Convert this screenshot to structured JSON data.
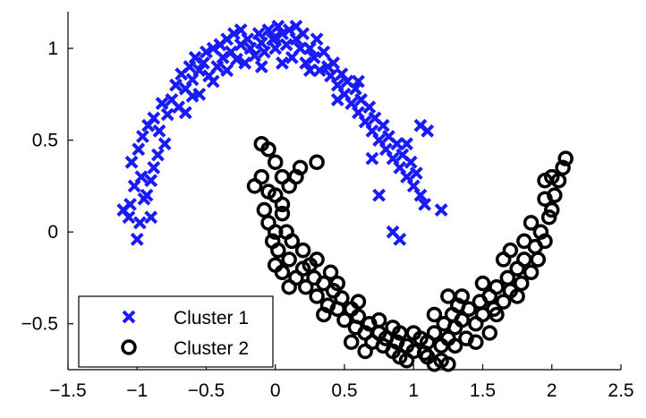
{
  "chart_data": {
    "type": "scatter",
    "title": "",
    "xlabel": "",
    "ylabel": "",
    "xlim": [
      -1.5,
      2.5
    ],
    "ylim": [
      -0.75,
      1.2
    ],
    "xticks": [
      -1.5,
      -1,
      -0.5,
      0,
      0.5,
      1,
      1.5,
      2,
      2.5
    ],
    "xtick_labels": [
      "−1.5",
      "−1",
      "−0.5",
      "0",
      "0.5",
      "1",
      "1.5",
      "2",
      "2.5"
    ],
    "yticks": [
      -0.5,
      0,
      0.5,
      1
    ],
    "ytick_labels": [
      "−0.5",
      "0",
      "0.5",
      "1"
    ],
    "grid": false,
    "legend_position": "bottom-left",
    "series": [
      {
        "name": "Cluster 1",
        "marker": "x",
        "color": "#1a1aff",
        "points": [
          [
            -1.05,
            0.15
          ],
          [
            -1.02,
            0.25
          ],
          [
            -0.98,
            0.05
          ],
          [
            -0.95,
            0.18
          ],
          [
            -1.1,
            0.12
          ],
          [
            -0.9,
            0.08
          ],
          [
            -1.0,
            -0.04
          ],
          [
            -0.97,
            0.3
          ],
          [
            -0.93,
            0.2
          ],
          [
            -1.04,
            0.38
          ],
          [
            -0.99,
            0.45
          ],
          [
            -0.96,
            0.52
          ],
          [
            -0.88,
            0.35
          ],
          [
            -0.85,
            0.42
          ],
          [
            -0.92,
            0.58
          ],
          [
            -0.88,
            0.62
          ],
          [
            -0.84,
            0.55
          ],
          [
            -0.8,
            0.48
          ],
          [
            -0.82,
            0.7
          ],
          [
            -0.78,
            0.64
          ],
          [
            -0.75,
            0.72
          ],
          [
            -0.72,
            0.8
          ],
          [
            -0.7,
            0.68
          ],
          [
            -0.68,
            0.86
          ],
          [
            -0.65,
            0.78
          ],
          [
            -0.62,
            0.9
          ],
          [
            -0.6,
            0.83
          ],
          [
            -0.58,
            0.95
          ],
          [
            -0.55,
            0.88
          ],
          [
            -0.52,
            0.92
          ],
          [
            -0.5,
            0.98
          ],
          [
            -0.48,
            0.85
          ],
          [
            -0.45,
            1.0
          ],
          [
            -0.42,
            0.9
          ],
          [
            -0.4,
            1.02
          ],
          [
            -0.38,
            0.95
          ],
          [
            -0.35,
            1.05
          ],
          [
            -0.32,
            0.98
          ],
          [
            -0.3,
            1.08
          ],
          [
            -0.28,
            0.94
          ],
          [
            -0.25,
            1.02
          ],
          [
            -0.22,
            0.92
          ],
          [
            -0.2,
            1.05
          ],
          [
            -0.18,
            1.0
          ],
          [
            -0.15,
            0.96
          ],
          [
            -0.12,
            1.08
          ],
          [
            -0.1,
            1.03
          ],
          [
            -0.08,
            0.98
          ],
          [
            -0.05,
            1.1
          ],
          [
            -0.02,
            1.05
          ],
          [
            0.0,
            1.0
          ],
          [
            0.02,
            1.12
          ],
          [
            0.05,
            1.08
          ],
          [
            0.08,
            1.02
          ],
          [
            0.1,
            1.1
          ],
          [
            0.12,
            0.95
          ],
          [
            0.15,
            1.05
          ],
          [
            0.18,
            1.0
          ],
          [
            0.2,
            1.08
          ],
          [
            0.22,
            0.92
          ],
          [
            0.25,
            1.0
          ],
          [
            0.28,
            0.95
          ],
          [
            0.3,
            1.05
          ],
          [
            0.32,
            0.88
          ],
          [
            0.35,
            0.98
          ],
          [
            0.38,
            0.9
          ],
          [
            0.4,
            0.85
          ],
          [
            0.42,
            0.92
          ],
          [
            0.45,
            0.8
          ],
          [
            0.48,
            0.86
          ],
          [
            0.5,
            0.75
          ],
          [
            0.52,
            0.82
          ],
          [
            0.55,
            0.7
          ],
          [
            0.58,
            0.78
          ],
          [
            0.6,
            0.65
          ],
          [
            0.62,
            0.72
          ],
          [
            0.65,
            0.6
          ],
          [
            0.68,
            0.68
          ],
          [
            0.7,
            0.55
          ],
          [
            0.72,
            0.62
          ],
          [
            0.75,
            0.5
          ],
          [
            0.78,
            0.58
          ],
          [
            0.8,
            0.45
          ],
          [
            0.82,
            0.52
          ],
          [
            0.85,
            0.4
          ],
          [
            0.88,
            0.48
          ],
          [
            0.9,
            0.35
          ],
          [
            0.92,
            0.42
          ],
          [
            0.95,
            0.3
          ],
          [
            0.98,
            0.38
          ],
          [
            1.0,
            0.25
          ],
          [
            1.02,
            0.32
          ],
          [
            1.05,
            0.2
          ],
          [
            1.08,
            0.15
          ],
          [
            1.1,
            0.55
          ],
          [
            1.2,
            0.12
          ],
          [
            0.85,
            0.0
          ],
          [
            0.9,
            -0.04
          ],
          [
            0.7,
            0.4
          ],
          [
            0.75,
            0.2
          ],
          [
            -0.55,
            0.75
          ],
          [
            -0.45,
            0.82
          ],
          [
            -0.35,
            0.88
          ],
          [
            -0.1,
            0.9
          ],
          [
            0.05,
            0.92
          ],
          [
            0.25,
            0.88
          ],
          [
            0.45,
            0.72
          ],
          [
            -0.65,
            0.65
          ],
          [
            -0.9,
            0.28
          ],
          [
            -1.06,
            0.08
          ],
          [
            -0.25,
            1.1
          ],
          [
            0.0,
            1.06
          ],
          [
            0.15,
            1.12
          ],
          [
            -0.6,
            0.74
          ],
          [
            0.6,
            0.82
          ],
          [
            0.95,
            0.48
          ],
          [
            1.05,
            0.58
          ]
        ]
      },
      {
        "name": "Cluster 2",
        "marker": "o",
        "color": "#000000",
        "points": [
          [
            -0.15,
            0.25
          ],
          [
            -0.1,
            0.48
          ],
          [
            -0.05,
            0.45
          ],
          [
            0.0,
            0.38
          ],
          [
            0.05,
            0.3
          ],
          [
            0.1,
            0.25
          ],
          [
            0.15,
            0.3
          ],
          [
            0.18,
            0.35
          ],
          [
            -0.08,
            0.12
          ],
          [
            -0.05,
            0.05
          ],
          [
            0.0,
            0.2
          ],
          [
            0.05,
            0.1
          ],
          [
            -0.02,
            -0.05
          ],
          [
            0.02,
            -0.1
          ],
          [
            0.08,
            0.0
          ],
          [
            0.12,
            -0.05
          ],
          [
            0.0,
            -0.18
          ],
          [
            0.05,
            -0.22
          ],
          [
            0.1,
            -0.15
          ],
          [
            0.15,
            -0.25
          ],
          [
            0.2,
            -0.1
          ],
          [
            0.25,
            -0.18
          ],
          [
            0.22,
            -0.3
          ],
          [
            0.28,
            -0.25
          ],
          [
            0.3,
            -0.35
          ],
          [
            0.35,
            -0.28
          ],
          [
            0.38,
            -0.4
          ],
          [
            0.42,
            -0.32
          ],
          [
            0.45,
            -0.42
          ],
          [
            0.48,
            -0.36
          ],
          [
            0.5,
            -0.48
          ],
          [
            0.55,
            -0.42
          ],
          [
            0.58,
            -0.52
          ],
          [
            0.6,
            -0.46
          ],
          [
            0.65,
            -0.55
          ],
          [
            0.68,
            -0.5
          ],
          [
            0.7,
            -0.6
          ],
          [
            0.75,
            -0.55
          ],
          [
            0.78,
            -0.62
          ],
          [
            0.8,
            -0.58
          ],
          [
            0.85,
            -0.65
          ],
          [
            0.88,
            -0.6
          ],
          [
            0.9,
            -0.68
          ],
          [
            0.95,
            -0.62
          ],
          [
            1.0,
            -0.65
          ],
          [
            1.05,
            -0.58
          ],
          [
            1.08,
            -0.66
          ],
          [
            1.1,
            -0.6
          ],
          [
            1.15,
            -0.55
          ],
          [
            1.2,
            -0.62
          ],
          [
            1.22,
            -0.5
          ],
          [
            1.25,
            -0.58
          ],
          [
            1.28,
            -0.45
          ],
          [
            1.3,
            -0.52
          ],
          [
            1.32,
            -0.4
          ],
          [
            1.35,
            -0.48
          ],
          [
            1.38,
            -0.58
          ],
          [
            1.4,
            -0.42
          ],
          [
            1.45,
            -0.5
          ],
          [
            1.48,
            -0.38
          ],
          [
            1.5,
            -0.45
          ],
          [
            1.55,
            -0.35
          ],
          [
            1.58,
            -0.42
          ],
          [
            1.6,
            -0.3
          ],
          [
            1.65,
            -0.38
          ],
          [
            1.68,
            -0.25
          ],
          [
            1.7,
            -0.32
          ],
          [
            1.75,
            -0.2
          ],
          [
            1.78,
            -0.28
          ],
          [
            1.8,
            -0.15
          ],
          [
            1.85,
            -0.22
          ],
          [
            1.88,
            -0.08
          ],
          [
            1.9,
            -0.15
          ],
          [
            1.92,
            0.0
          ],
          [
            1.95,
            -0.05
          ],
          [
            1.98,
            0.08
          ],
          [
            2.0,
            0.12
          ],
          [
            2.02,
            0.2
          ],
          [
            2.05,
            0.28
          ],
          [
            2.08,
            0.35
          ],
          [
            2.1,
            0.4
          ],
          [
            1.95,
            0.18
          ],
          [
            2.0,
            0.3
          ],
          [
            1.85,
            0.05
          ],
          [
            1.7,
            -0.1
          ],
          [
            1.65,
            -0.15
          ],
          [
            1.35,
            -0.35
          ],
          [
            1.25,
            -0.35
          ],
          [
            1.2,
            -0.7
          ],
          [
            1.15,
            -0.72
          ],
          [
            1.25,
            -0.72
          ],
          [
            1.0,
            -0.55
          ],
          [
            0.9,
            -0.55
          ],
          [
            0.75,
            -0.48
          ],
          [
            0.6,
            -0.38
          ],
          [
            0.45,
            -0.28
          ],
          [
            0.3,
            -0.15
          ],
          [
            0.2,
            -0.2
          ],
          [
            0.1,
            -0.3
          ],
          [
            0.0,
            0.0
          ],
          [
            -0.1,
            0.3
          ],
          [
            -0.05,
            0.22
          ],
          [
            0.05,
            0.15
          ],
          [
            0.35,
            -0.45
          ],
          [
            0.55,
            -0.6
          ],
          [
            0.65,
            -0.65
          ],
          [
            1.45,
            -0.6
          ],
          [
            1.55,
            -0.55
          ],
          [
            1.6,
            -0.45
          ],
          [
            1.75,
            -0.35
          ],
          [
            1.3,
            -0.62
          ],
          [
            1.1,
            -0.68
          ],
          [
            0.95,
            -0.7
          ],
          [
            0.85,
            -0.52
          ],
          [
            0.4,
            -0.22
          ],
          [
            0.3,
            0.38
          ],
          [
            1.95,
            0.28
          ],
          [
            1.8,
            -0.05
          ],
          [
            1.5,
            -0.28
          ],
          [
            1.15,
            -0.45
          ]
        ]
      }
    ]
  }
}
